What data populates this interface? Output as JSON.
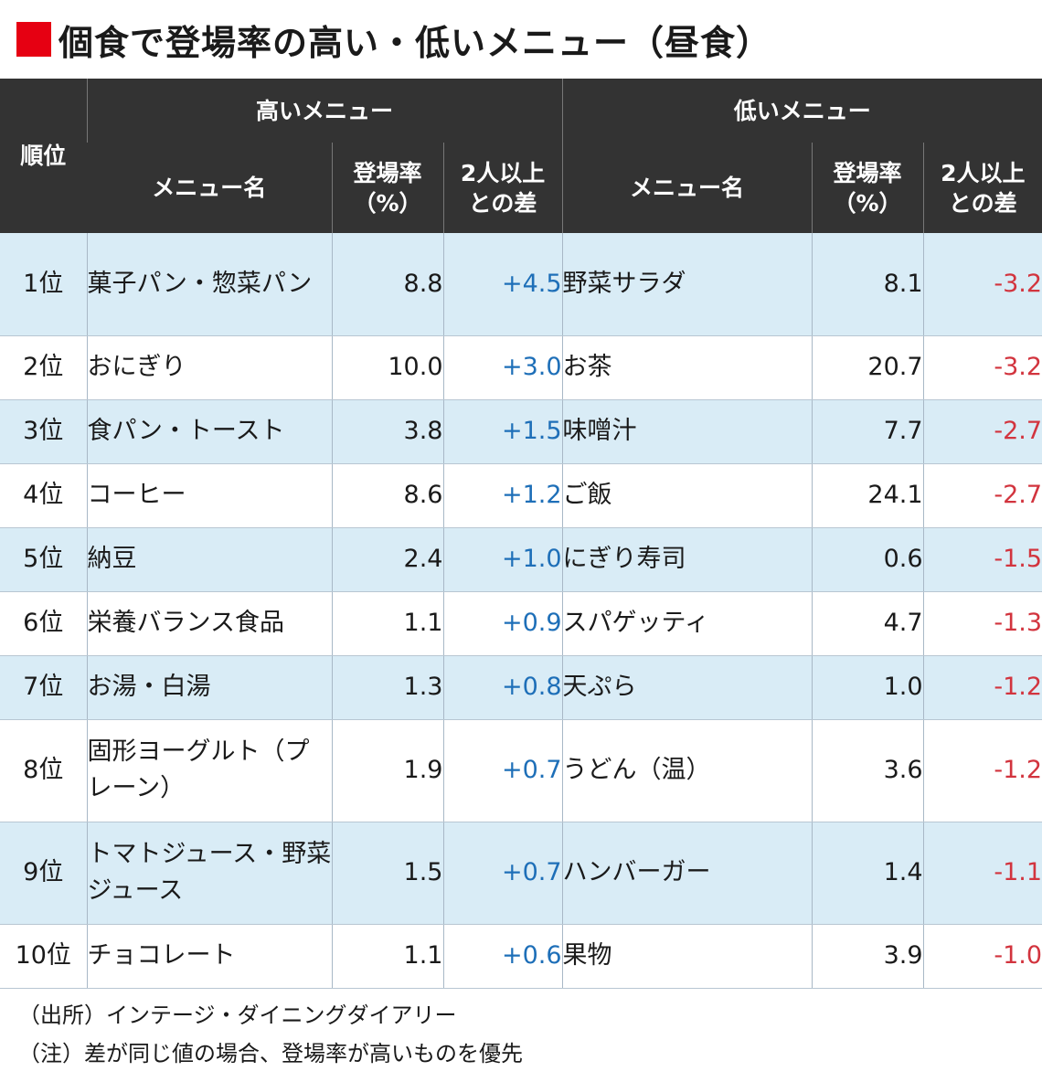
{
  "title": "個食で登場率の高い・低いメニュー（昼食）",
  "headers": {
    "rank": "順位",
    "high_group": "高いメニュー",
    "low_group": "低いメニュー",
    "menu_name": "メニュー名",
    "rate_line1": "登場率",
    "rate_line2": "（%）",
    "diff_line1": "2人以上",
    "diff_line2": "との差"
  },
  "rows": [
    {
      "rank": "1位",
      "high_name": "菓子パン・惣菜パン",
      "high_rate": "8.8",
      "high_diff": "+4.5",
      "low_name": "野菜サラダ",
      "low_rate": "8.1",
      "low_diff": "-3.2"
    },
    {
      "rank": "2位",
      "high_name": "おにぎり",
      "high_rate": "10.0",
      "high_diff": "+3.0",
      "low_name": "お茶",
      "low_rate": "20.7",
      "low_diff": "-3.2"
    },
    {
      "rank": "3位",
      "high_name": "食パン・トースト",
      "high_rate": "3.8",
      "high_diff": "+1.5",
      "low_name": "味噌汁",
      "low_rate": "7.7",
      "low_diff": "-2.7"
    },
    {
      "rank": "4位",
      "high_name": "コーヒー",
      "high_rate": "8.6",
      "high_diff": "+1.2",
      "low_name": "ご飯",
      "low_rate": "24.1",
      "low_diff": "-2.7"
    },
    {
      "rank": "5位",
      "high_name": "納豆",
      "high_rate": "2.4",
      "high_diff": "+1.0",
      "low_name": "にぎり寿司",
      "low_rate": "0.6",
      "low_diff": "-1.5"
    },
    {
      "rank": "6位",
      "high_name": "栄養バランス食品",
      "high_rate": "1.1",
      "high_diff": "+0.9",
      "low_name": "スパゲッティ",
      "low_rate": "4.7",
      "low_diff": "-1.3"
    },
    {
      "rank": "7位",
      "high_name": "お湯・白湯",
      "high_rate": "1.3",
      "high_diff": "+0.8",
      "low_name": "天ぷら",
      "low_rate": "1.0",
      "low_diff": "-1.2"
    },
    {
      "rank": "8位",
      "high_name": "固形ヨーグルト（プレーン）",
      "high_rate": "1.9",
      "high_diff": "+0.7",
      "low_name": "うどん（温）",
      "low_rate": "3.6",
      "low_diff": "-1.2"
    },
    {
      "rank": "9位",
      "high_name": "トマトジュース・野菜ジュース",
      "high_rate": "1.5",
      "high_diff": "+0.7",
      "low_name": "ハンバーガー",
      "low_rate": "1.4",
      "low_diff": "-1.1"
    },
    {
      "rank": "10位",
      "high_name": "チョコレート",
      "high_rate": "1.1",
      "high_diff": "+0.6",
      "low_name": "果物",
      "low_rate": "3.9",
      "low_diff": "-1.0"
    }
  ],
  "notes": [
    "（出所）インテージ・ダイニングダイアリー",
    "（注）差が同じ値の場合、登場率が高いものを優先"
  ],
  "colors": {
    "accent": "#e60012",
    "header_bg": "#333333",
    "alt_row_bg": "#d9ecf6",
    "positive": "#1e6fb8",
    "negative": "#d2343e"
  }
}
